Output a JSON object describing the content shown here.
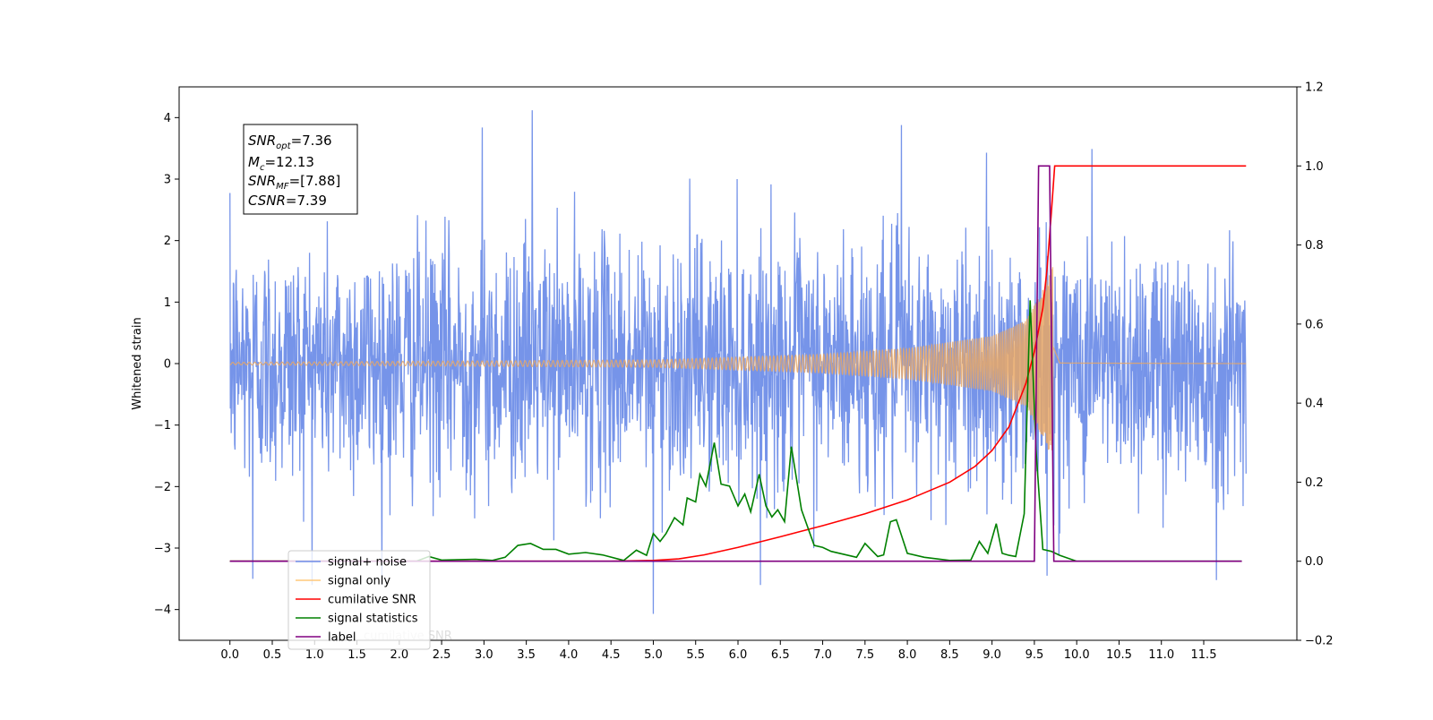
{
  "chart_data": {
    "type": "line",
    "ylabel_left": "Whitened strain",
    "ylabel_right": "",
    "xlim": [
      -0.6,
      12.6
    ],
    "ylim_left": [
      -4.5,
      4.5
    ],
    "ylim_right": [
      -0.2,
      1.2
    ],
    "x_ticks": [
      0.0,
      0.5,
      1.0,
      1.5,
      2.0,
      2.5,
      3.0,
      3.5,
      4.0,
      4.5,
      5.0,
      5.5,
      6.0,
      6.5,
      7.0,
      7.5,
      8.0,
      8.5,
      9.0,
      9.5,
      10.0,
      10.5,
      11.0,
      11.5
    ],
    "x_tick_labels": [
      "0.0",
      "0.5",
      "1.0",
      "1.5",
      "2.0",
      "2.5",
      "3.0",
      "3.5",
      "4.0",
      "4.5",
      "5.0",
      "5.5",
      "6.0",
      "6.5",
      "7.0",
      "7.5",
      "8.0",
      "8.5",
      "9.0",
      "9.5",
      "10.0",
      "10.5",
      "11.0",
      "11.5"
    ],
    "y_left_ticks": [
      -4,
      -3,
      -2,
      -1,
      0,
      1,
      2,
      3,
      4
    ],
    "y_left_tick_labels": [
      "−4",
      "−3",
      "−2",
      "−1",
      "0",
      "1",
      "2",
      "3",
      "4"
    ],
    "y_right_ticks": [
      -0.2,
      0.0,
      0.2,
      0.4,
      0.6,
      0.8,
      1.0,
      1.2
    ],
    "y_right_tick_labels": [
      "−0.2",
      "0.0",
      "0.2",
      "0.4",
      "0.6",
      "0.8",
      "1.0",
      "1.2"
    ],
    "grid": false,
    "legend_placement": "bottom-left",
    "annotation": {
      "snr_opt": "7.36",
      "mc": "12.13",
      "snr_mf": "[7.88]",
      "csnr": "7.39"
    },
    "series": [
      {
        "name": "signal+ noise",
        "axis": "left",
        "color": "#6f8ee8",
        "kind": "noise",
        "x_range": [
          0.0,
          12.0
        ],
        "amplitude_std": 1.0,
        "peaks": [
          {
            "x": 3.57,
            "y": 4.12
          },
          {
            "x": 5.0,
            "y": -4.07
          },
          {
            "x": 7.93,
            "y": 3.88
          },
          {
            "x": 2.98,
            "y": 3.84
          },
          {
            "x": 11.65,
            "y": -3.52
          },
          {
            "x": 0.27,
            "y": -3.5
          },
          {
            "x": 9.65,
            "y": -3.45
          },
          {
            "x": 10.18,
            "y": 3.49
          }
        ]
      },
      {
        "name": "signal only",
        "axis": "left",
        "color": "#e8a766",
        "kind": "chirp",
        "x_range": [
          0.0,
          12.0
        ],
        "merger_time": 9.73,
        "envelope": [
          {
            "x": 0.0,
            "y": 0.02
          },
          {
            "x": 5.0,
            "y": 0.06
          },
          {
            "x": 7.0,
            "y": 0.15
          },
          {
            "x": 8.0,
            "y": 0.25
          },
          {
            "x": 9.0,
            "y": 0.45
          },
          {
            "x": 9.4,
            "y": 0.7
          },
          {
            "x": 9.6,
            "y": 1.2
          },
          {
            "x": 9.72,
            "y": 1.6
          },
          {
            "x": 9.8,
            "y": 0.05
          },
          {
            "x": 12.0,
            "y": 0.0
          }
        ]
      },
      {
        "name": "cumilative SNR",
        "axis": "right",
        "color": "#ff0000",
        "points": [
          {
            "x": 0.0,
            "y": 0.0
          },
          {
            "x": 4.5,
            "y": 0.0
          },
          {
            "x": 5.0,
            "y": 0.002
          },
          {
            "x": 5.3,
            "y": 0.006
          },
          {
            "x": 5.6,
            "y": 0.016
          },
          {
            "x": 6.0,
            "y": 0.035
          },
          {
            "x": 6.5,
            "y": 0.062
          },
          {
            "x": 7.0,
            "y": 0.09
          },
          {
            "x": 7.5,
            "y": 0.12
          },
          {
            "x": 8.0,
            "y": 0.155
          },
          {
            "x": 8.5,
            "y": 0.2
          },
          {
            "x": 8.8,
            "y": 0.24
          },
          {
            "x": 9.0,
            "y": 0.28
          },
          {
            "x": 9.2,
            "y": 0.34
          },
          {
            "x": 9.4,
            "y": 0.45
          },
          {
            "x": 9.5,
            "y": 0.53
          },
          {
            "x": 9.6,
            "y": 0.64
          },
          {
            "x": 9.65,
            "y": 0.74
          },
          {
            "x": 9.7,
            "y": 0.88
          },
          {
            "x": 9.74,
            "y": 1.0
          },
          {
            "x": 12.0,
            "y": 1.0
          }
        ]
      },
      {
        "name": "signal statistics",
        "axis": "right",
        "color": "#008000",
        "points": [
          {
            "x": 0.0,
            "y": 0.0
          },
          {
            "x": 2.2,
            "y": 0.0
          },
          {
            "x": 2.35,
            "y": 0.012
          },
          {
            "x": 2.5,
            "y": 0.003
          },
          {
            "x": 2.9,
            "y": 0.005
          },
          {
            "x": 3.1,
            "y": 0.002
          },
          {
            "x": 3.25,
            "y": 0.01
          },
          {
            "x": 3.4,
            "y": 0.04
          },
          {
            "x": 3.55,
            "y": 0.045
          },
          {
            "x": 3.7,
            "y": 0.03
          },
          {
            "x": 3.85,
            "y": 0.03
          },
          {
            "x": 4.0,
            "y": 0.018
          },
          {
            "x": 4.2,
            "y": 0.022
          },
          {
            "x": 4.4,
            "y": 0.016
          },
          {
            "x": 4.65,
            "y": 0.002
          },
          {
            "x": 4.8,
            "y": 0.028
          },
          {
            "x": 4.92,
            "y": 0.015
          },
          {
            "x": 5.0,
            "y": 0.07
          },
          {
            "x": 5.08,
            "y": 0.05
          },
          {
            "x": 5.15,
            "y": 0.07
          },
          {
            "x": 5.25,
            "y": 0.11
          },
          {
            "x": 5.35,
            "y": 0.092
          },
          {
            "x": 5.4,
            "y": 0.16
          },
          {
            "x": 5.5,
            "y": 0.15
          },
          {
            "x": 5.55,
            "y": 0.22
          },
          {
            "x": 5.62,
            "y": 0.19
          },
          {
            "x": 5.72,
            "y": 0.3
          },
          {
            "x": 5.8,
            "y": 0.195
          },
          {
            "x": 5.9,
            "y": 0.19
          },
          {
            "x": 6.0,
            "y": 0.14
          },
          {
            "x": 6.08,
            "y": 0.17
          },
          {
            "x": 6.15,
            "y": 0.125
          },
          {
            "x": 6.25,
            "y": 0.22
          },
          {
            "x": 6.33,
            "y": 0.14
          },
          {
            "x": 6.4,
            "y": 0.112
          },
          {
            "x": 6.47,
            "y": 0.13
          },
          {
            "x": 6.55,
            "y": 0.1
          },
          {
            "x": 6.63,
            "y": 0.29
          },
          {
            "x": 6.75,
            "y": 0.13
          },
          {
            "x": 6.9,
            "y": 0.04
          },
          {
            "x": 7.0,
            "y": 0.035
          },
          {
            "x": 7.1,
            "y": 0.025
          },
          {
            "x": 7.4,
            "y": 0.01
          },
          {
            "x": 7.5,
            "y": 0.045
          },
          {
            "x": 7.65,
            "y": 0.012
          },
          {
            "x": 7.72,
            "y": 0.016
          },
          {
            "x": 7.8,
            "y": 0.1
          },
          {
            "x": 7.87,
            "y": 0.105
          },
          {
            "x": 8.0,
            "y": 0.02
          },
          {
            "x": 8.2,
            "y": 0.01
          },
          {
            "x": 8.5,
            "y": 0.002
          },
          {
            "x": 8.75,
            "y": 0.003
          },
          {
            "x": 8.85,
            "y": 0.05
          },
          {
            "x": 8.95,
            "y": 0.02
          },
          {
            "x": 9.05,
            "y": 0.095
          },
          {
            "x": 9.12,
            "y": 0.02
          },
          {
            "x": 9.2,
            "y": 0.015
          },
          {
            "x": 9.28,
            "y": 0.012
          },
          {
            "x": 9.38,
            "y": 0.12
          },
          {
            "x": 9.45,
            "y": 0.66
          },
          {
            "x": 9.52,
            "y": 0.28
          },
          {
            "x": 9.6,
            "y": 0.03
          },
          {
            "x": 9.7,
            "y": 0.025
          },
          {
            "x": 9.8,
            "y": 0.015
          },
          {
            "x": 10.0,
            "y": 0.0
          },
          {
            "x": 11.95,
            "y": 0.0
          }
        ]
      },
      {
        "name": "label",
        "axis": "right",
        "color": "#800080",
        "points": [
          {
            "x": 0.0,
            "y": 0.0
          },
          {
            "x": 9.5,
            "y": 0.0
          },
          {
            "x": 9.55,
            "y": 1.0
          },
          {
            "x": 9.68,
            "y": 1.0
          },
          {
            "x": 9.73,
            "y": 0.0
          },
          {
            "x": 11.95,
            "y": 0.0
          }
        ]
      }
    ],
    "ghost_legend_text": "cumilative SNR"
  }
}
